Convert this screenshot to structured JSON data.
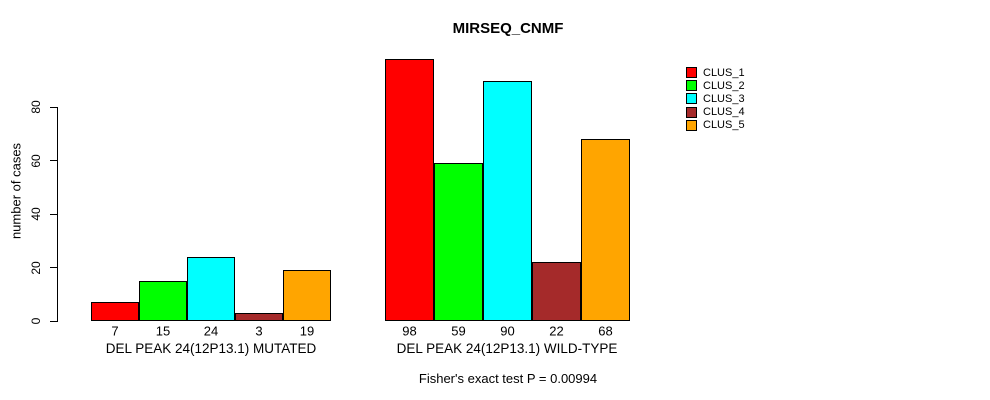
{
  "title": "MIRSEQ_CNMF",
  "footer": "Fisher's exact test P = 0.00994",
  "chart_data": {
    "type": "bar",
    "title": "MIRSEQ_CNMF",
    "ylabel": "number of cases",
    "xlabel": "",
    "yticks": [
      0,
      20,
      40,
      60,
      80
    ],
    "ylim": [
      0,
      105
    ],
    "grid": false,
    "legend_position": "right",
    "categories": [
      "DEL PEAK 24(12P13.1) MUTATED",
      "DEL PEAK 24(12P13.1) WILD-TYPE"
    ],
    "series": [
      {
        "name": "CLUS_1",
        "color": "#FF0000",
        "values": [
          7,
          98
        ]
      },
      {
        "name": "CLUS_2",
        "color": "#00FF00",
        "values": [
          15,
          59
        ]
      },
      {
        "name": "CLUS_3",
        "color": "#00FFFF",
        "values": [
          24,
          90
        ]
      },
      {
        "name": "CLUS_4",
        "color": "#A52A2A",
        "values": [
          3,
          22
        ]
      },
      {
        "name": "CLUS_5",
        "color": "#FFA500",
        "values": [
          19,
          68
        ]
      }
    ],
    "bar_value_labels": [
      [
        7,
        15,
        24,
        3,
        19
      ],
      [
        98,
        59,
        90,
        22,
        68
      ]
    ],
    "annotation": "Fisher's exact test P = 0.00994"
  }
}
